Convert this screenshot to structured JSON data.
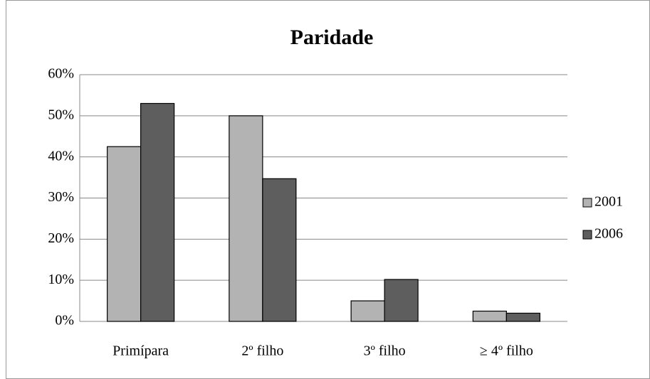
{
  "chart_data": {
    "type": "bar",
    "title": "Paridade",
    "categories": [
      "Primípara",
      "2º filho",
      "3º filho",
      "≥ 4º filho"
    ],
    "series": [
      {
        "name": "2001",
        "color": "#b3b3b3",
        "values": [
          42.5,
          50,
          5,
          2.5
        ]
      },
      {
        "name": "2006",
        "color": "#5e5e5e",
        "values": [
          53,
          34.7,
          10.2,
          2
        ]
      }
    ],
    "ylim": [
      0,
      60
    ],
    "yticks": [
      {
        "value": 0,
        "label": "0%"
      },
      {
        "value": 10,
        "label": "10%"
      },
      {
        "value": 20,
        "label": "20%"
      },
      {
        "value": 30,
        "label": "30%"
      },
      {
        "value": 40,
        "label": "40%"
      },
      {
        "value": 50,
        "label": "50%"
      },
      {
        "value": 60,
        "label": "60%"
      }
    ],
    "grid": true,
    "legend": "right"
  }
}
